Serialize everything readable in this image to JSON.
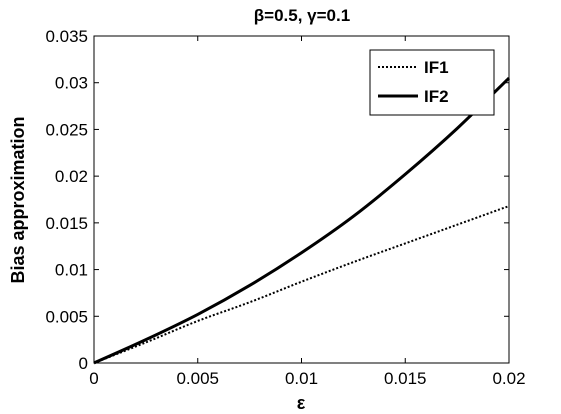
{
  "chart_data": {
    "type": "line",
    "title": "β=0.5, γ=0.1",
    "xlabel": "ε",
    "ylabel": "Bias approximation",
    "xlim": [
      0,
      0.02
    ],
    "ylim": [
      0,
      0.035
    ],
    "x_ticks": [
      "0",
      "0.005",
      "0.01",
      "0.015",
      "0.02"
    ],
    "y_ticks": [
      "0",
      "0.005",
      "0.01",
      "0.015",
      "0.02",
      "0.025",
      "0.03",
      "0.035"
    ],
    "grid": false,
    "legend_position": "top-right",
    "x": [
      0,
      0.0025,
      0.005,
      0.0075,
      0.01,
      0.0125,
      0.015,
      0.0175,
      0.02
    ],
    "series": [
      {
        "name": "IF1",
        "style": "dotted",
        "color": "#000000",
        "values": [
          0,
          0.0022,
          0.0045,
          0.0065,
          0.0087,
          0.0108,
          0.0128,
          0.0148,
          0.0168
        ]
      },
      {
        "name": "IF2",
        "style": "solid",
        "color": "#000000",
        "values": [
          0,
          0.0025,
          0.0052,
          0.0083,
          0.0118,
          0.0157,
          0.0202,
          0.0251,
          0.0305
        ]
      }
    ]
  }
}
